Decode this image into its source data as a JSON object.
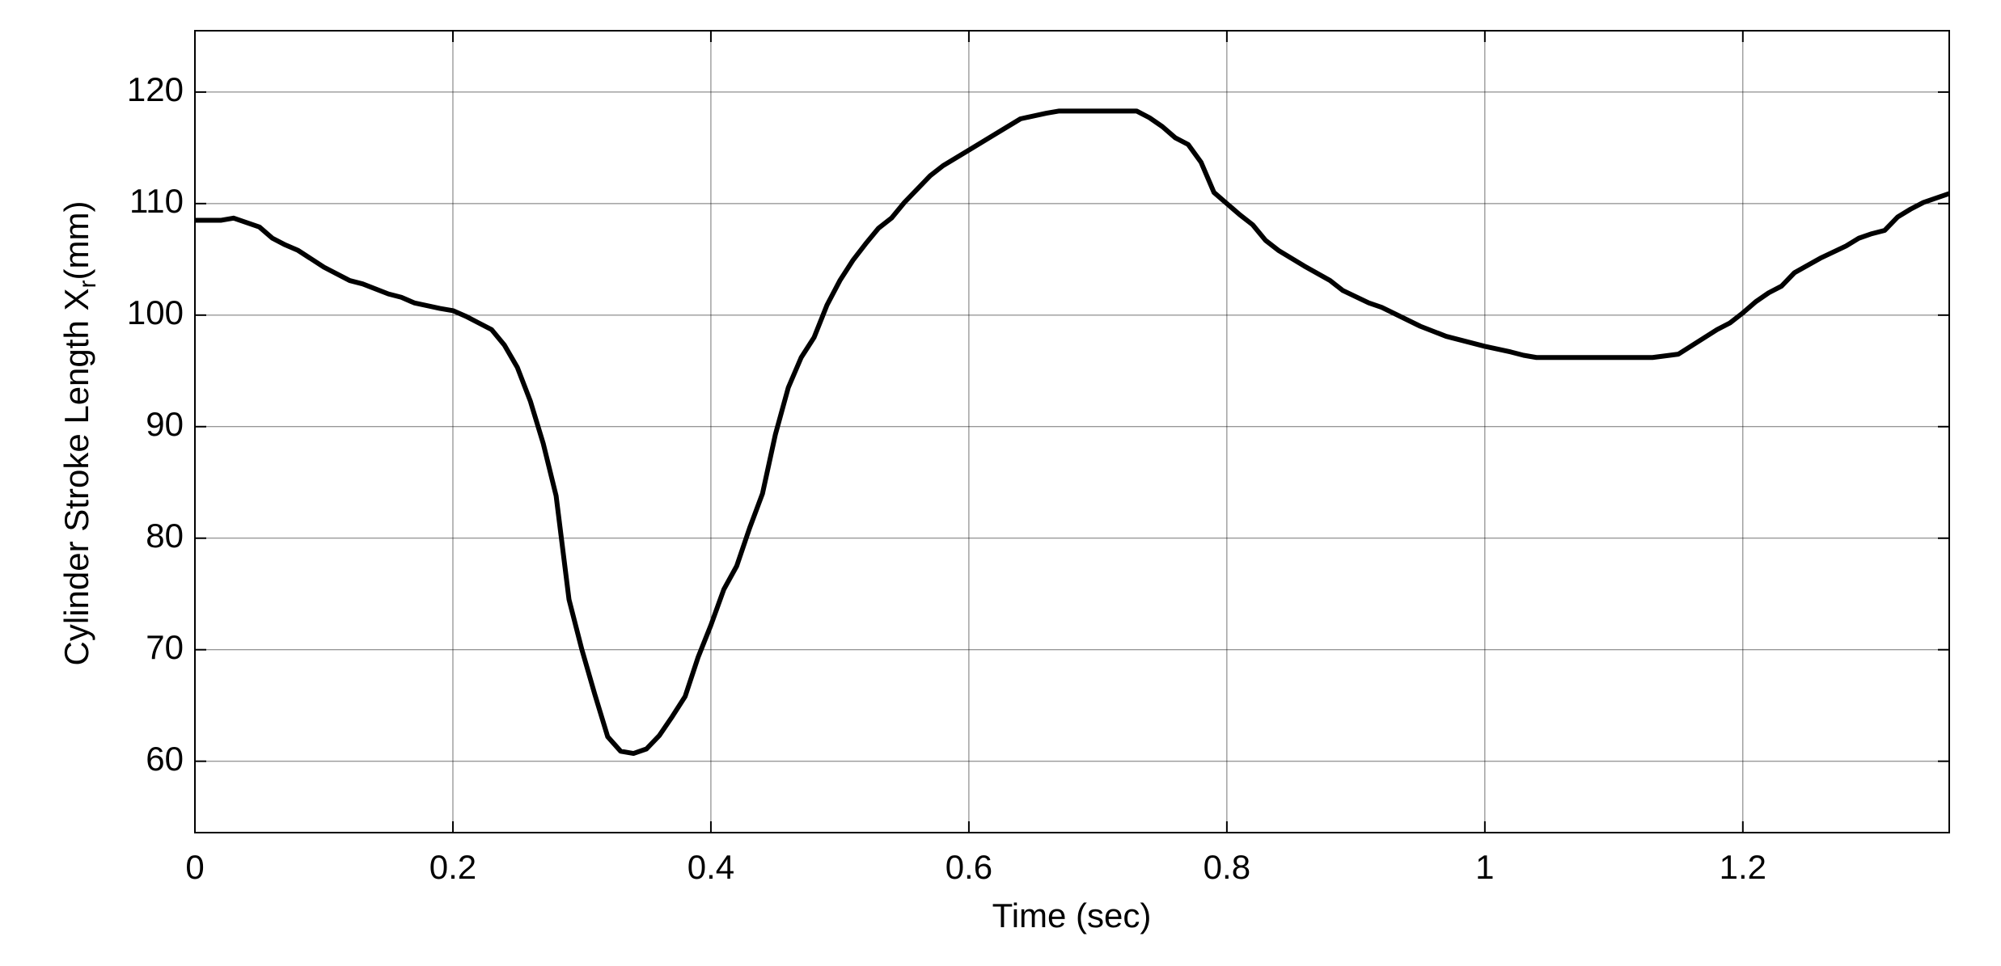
{
  "chart_data": {
    "type": "line",
    "xlabel": "Time (sec)",
    "ylabel": {
      "text": "Cylinder Stroke Length X",
      "subscript": "r",
      "unit": "(mm)"
    },
    "xlim": [
      0,
      1.36
    ],
    "ylim": [
      53.6,
      125.5
    ],
    "xticks": [
      0,
      0.2,
      0.4,
      0.6,
      0.8,
      1,
      1.2
    ],
    "yticks": [
      60,
      70,
      80,
      90,
      100,
      110,
      120
    ],
    "grid": true,
    "color": "#000000",
    "x": [
      0,
      0.02,
      0.03,
      0.04,
      0.05,
      0.06,
      0.07,
      0.08,
      0.1,
      0.12,
      0.13,
      0.15,
      0.16,
      0.17,
      0.19,
      0.2,
      0.21,
      0.22,
      0.23,
      0.24,
      0.25,
      0.26,
      0.27,
      0.28,
      0.29,
      0.3,
      0.31,
      0.32,
      0.33,
      0.34,
      0.35,
      0.36,
      0.37,
      0.38,
      0.39,
      0.4,
      0.41,
      0.42,
      0.43,
      0.44,
      0.45,
      0.46,
      0.47,
      0.48,
      0.49,
      0.5,
      0.51,
      0.52,
      0.53,
      0.54,
      0.55,
      0.56,
      0.57,
      0.58,
      0.59,
      0.6,
      0.62,
      0.64,
      0.66,
      0.67,
      0.7,
      0.73,
      0.74,
      0.75,
      0.76,
      0.77,
      0.78,
      0.79,
      0.8,
      0.81,
      0.82,
      0.83,
      0.84,
      0.86,
      0.88,
      0.89,
      0.91,
      0.92,
      0.95,
      0.97,
      1.0,
      1.02,
      1.03,
      1.04,
      1.1,
      1.13,
      1.15,
      1.18,
      1.19,
      1.2,
      1.21,
      1.22,
      1.23,
      1.24,
      1.26,
      1.28,
      1.29,
      1.3,
      1.31,
      1.32,
      1.33,
      1.34,
      1.35,
      1.36
    ],
    "y": [
      108.5,
      108.5,
      108.7,
      108.3,
      107.9,
      106.9,
      106.3,
      105.8,
      104.3,
      103.1,
      102.8,
      101.9,
      101.6,
      101.1,
      100.6,
      100.4,
      99.9,
      99.3,
      98.7,
      97.3,
      95.3,
      92.3,
      88.5,
      83.8,
      74.5,
      70,
      66,
      62.2,
      60.9,
      60.7,
      61.1,
      62.3,
      64,
      65.8,
      69.3,
      72.2,
      75.4,
      77.5,
      80.9,
      84,
      89.3,
      93.5,
      96.2,
      98,
      100.9,
      103.1,
      104.9,
      106.4,
      107.8,
      108.7,
      110.1,
      111.3,
      112.5,
      113.4,
      114.1,
      114.8,
      116.2,
      117.6,
      118.1,
      118.3,
      118.3,
      118.3,
      117.7,
      116.9,
      115.9,
      115.3,
      113.7,
      111,
      110,
      109,
      108.1,
      106.7,
      105.8,
      104.4,
      103.1,
      102.2,
      101.1,
      100.7,
      99,
      98.1,
      97.2,
      96.7,
      96.4,
      96.2,
      96.2,
      96.2,
      96.5,
      98.7,
      99.3,
      100.2,
      101.2,
      102,
      102.6,
      103.8,
      105.1,
      106.2,
      106.9,
      107.3,
      107.6,
      108.8,
      109.5,
      110.1,
      110.5,
      110.9
    ]
  }
}
